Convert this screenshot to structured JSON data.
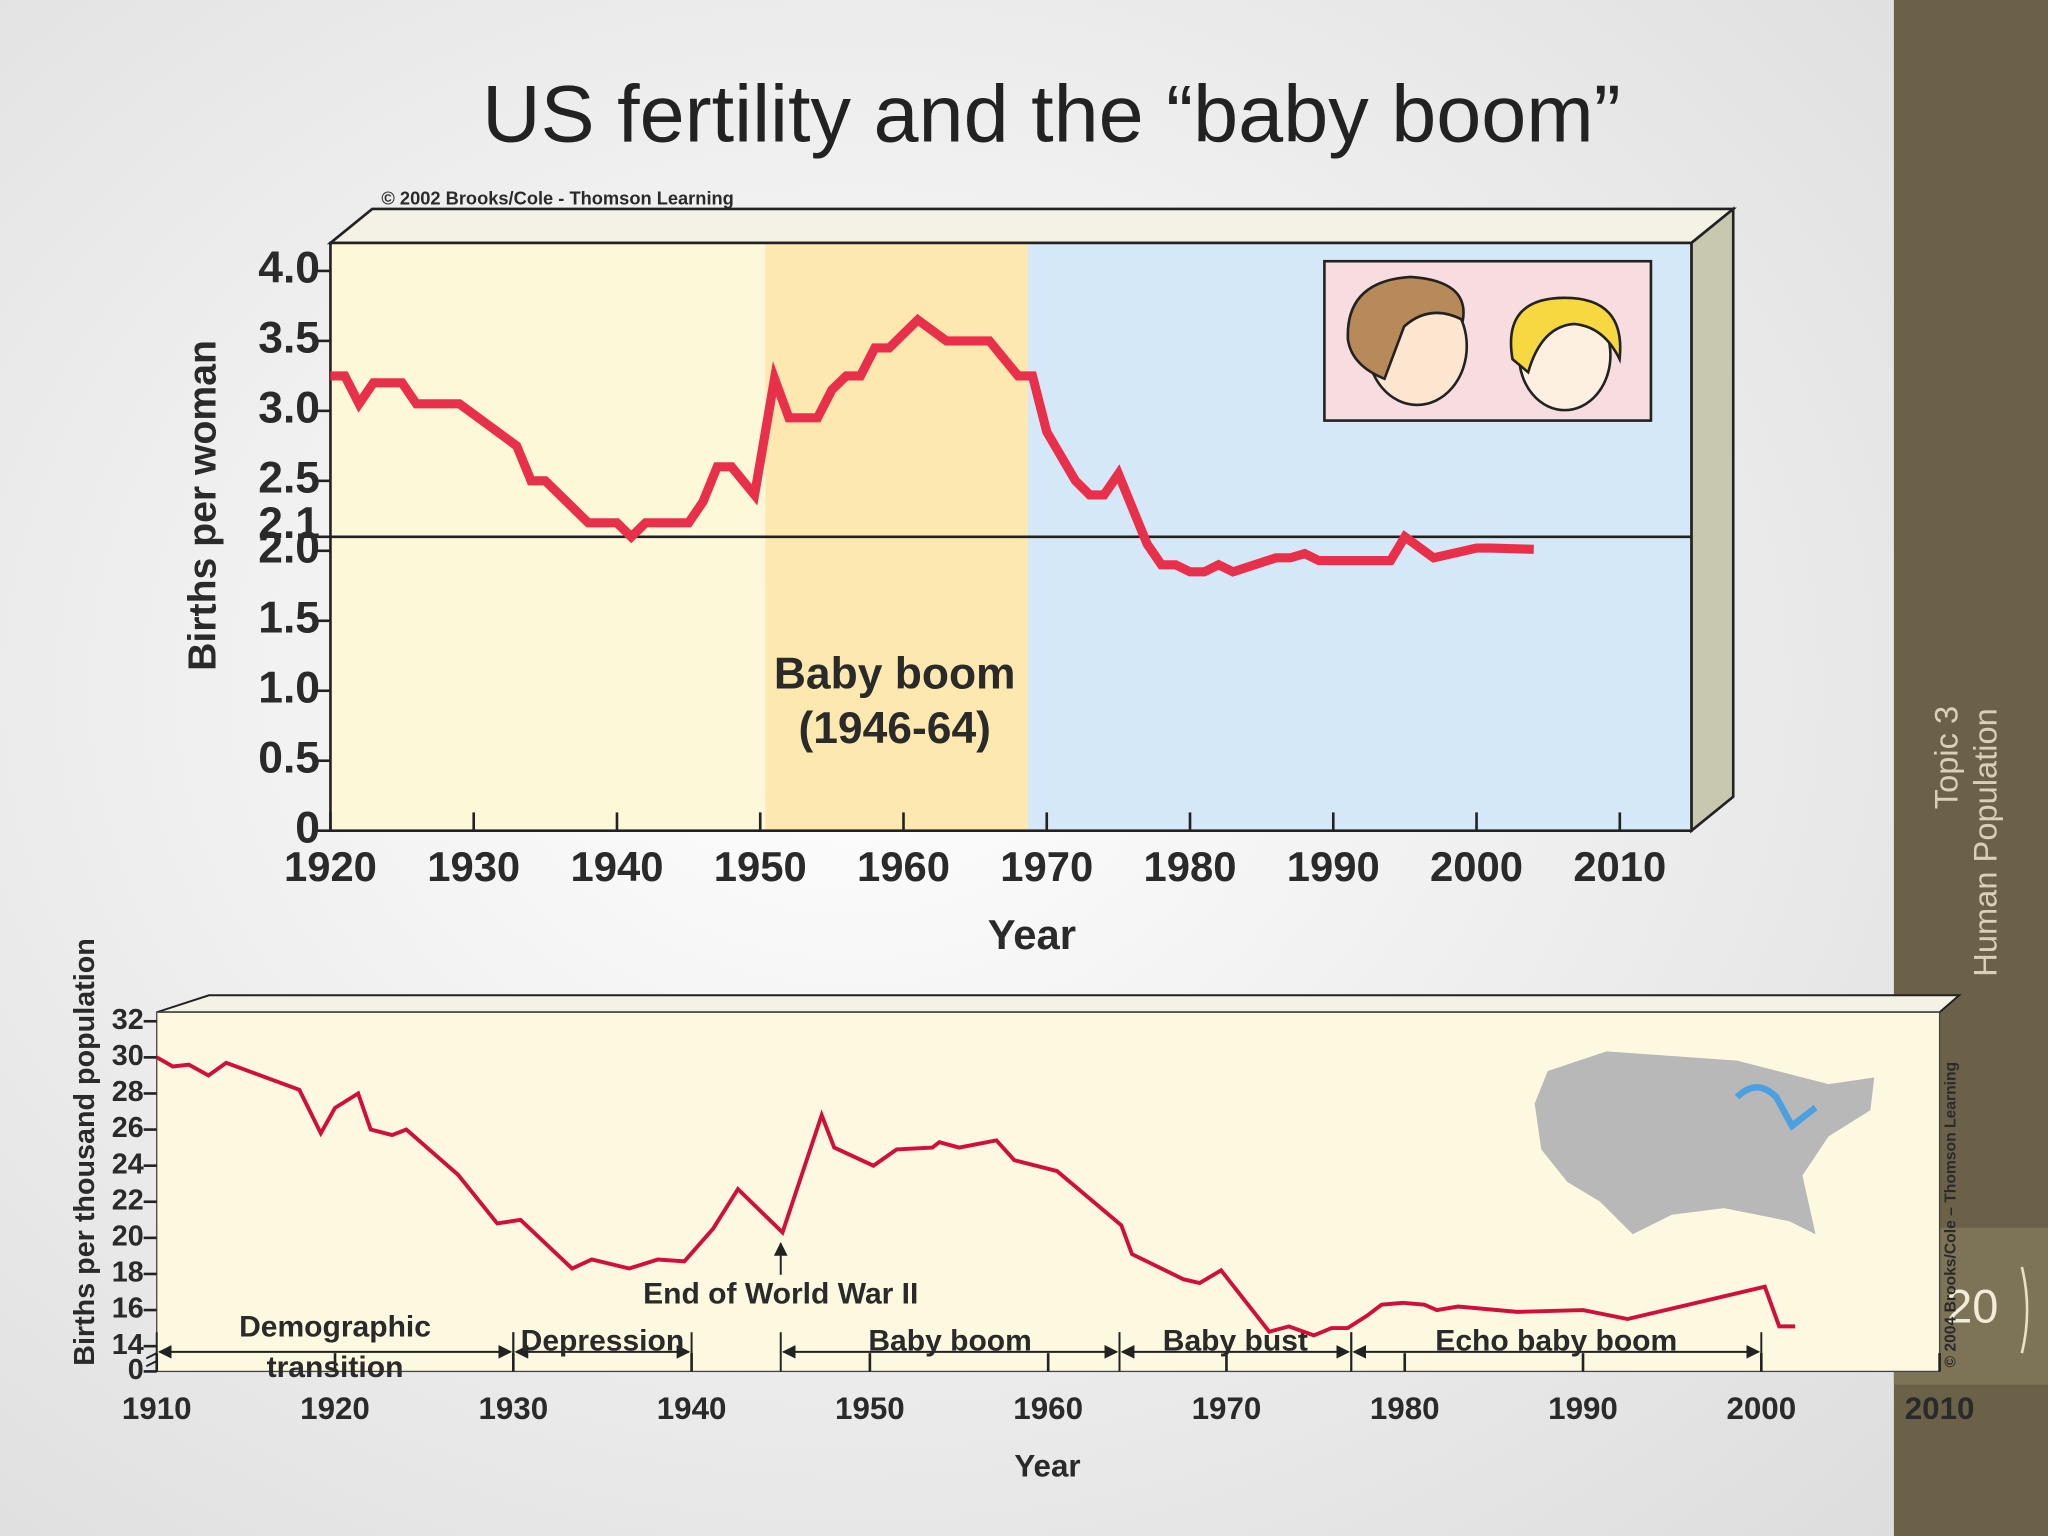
{
  "title": "US fertility and the “baby boom”",
  "sidebar": [
    "Topic 3",
    "Human Population"
  ],
  "page_number": "20",
  "chart_data": [
    {
      "type": "line",
      "credit": "© 2002 Brooks/Cole - Thomson Learning",
      "ylabel": "Births per woman",
      "xlabel": "Year",
      "annotation": [
        "Baby boom",
        "(1946-64)"
      ],
      "reference_line": 2.1,
      "color": "#e8304a",
      "x": [
        1920,
        1921,
        1922,
        1923,
        1925,
        1926,
        1929,
        1933,
        1934,
        1935,
        1938,
        1940,
        1941,
        1942,
        1945,
        1946,
        1947,
        1948,
        1949.6,
        1951,
        1952,
        1954,
        1955,
        1956,
        1957,
        1958,
        1959,
        1961,
        1963,
        1966,
        1968,
        1969,
        1970,
        1972,
        1973,
        1974,
        1975,
        1977,
        1978,
        1979,
        1980,
        1981,
        1982,
        1983,
        1986,
        1987,
        1988,
        1989,
        1994,
        1995,
        1997,
        2000,
        2001,
        2004
      ],
      "values": [
        3.25,
        3.25,
        3.05,
        3.2,
        3.2,
        3.05,
        3.05,
        2.75,
        2.5,
        2.5,
        2.2,
        2.2,
        2.1,
        2.2,
        2.2,
        2.35,
        2.6,
        2.6,
        2.4,
        3.23,
        2.95,
        2.95,
        3.15,
        3.25,
        3.25,
        3.45,
        3.45,
        3.65,
        3.5,
        3.5,
        3.25,
        3.25,
        2.85,
        2.5,
        2.4,
        2.4,
        2.55,
        2.05,
        1.9,
        1.9,
        1.85,
        1.85,
        1.9,
        1.85,
        1.95,
        1.95,
        1.98,
        1.93,
        1.93,
        2.1,
        1.95,
        2.02,
        2.02,
        2.01
      ],
      "xlim": [
        1920,
        2015
      ],
      "xticks": [
        1920,
        1930,
        1940,
        1950,
        1960,
        1970,
        1980,
        1990,
        2000,
        2010
      ],
      "ylim": [
        0,
        4.2
      ],
      "yticks": [
        0,
        0.5,
        {
          "value": 1,
          "label": "1.0"
        },
        1.5,
        {
          "value": 2,
          "label": "2.0"
        },
        2.5,
        {
          "value": 3,
          "label": "3.0"
        },
        3.5,
        {
          "value": 4,
          "label": "4.0"
        }
      ]
    },
    {
      "type": "line",
      "credit": "© 2004 Brooks/Cole – Thomson Learning",
      "ylabel": "Births per thousand population",
      "xlabel": "Year",
      "color": "#d0103a",
      "axis_break": true,
      "event": {
        "text": "End of World War II",
        "x": 1945
      },
      "periods": [
        {
          "label": [
            "Demographic",
            "transition"
          ],
          "start": 1910,
          "end": 1930
        },
        {
          "label": [
            "Depression"
          ],
          "start": 1930,
          "end": 1940
        },
        {
          "label": [
            "Baby boom"
          ],
          "start": 1945,
          "end": 1964
        },
        {
          "label": [
            "Baby bust"
          ],
          "start": 1964,
          "end": 1977
        },
        {
          "label": [
            "Echo baby boom"
          ],
          "start": 1977,
          "end": 2000
        }
      ],
      "x": [
        1910,
        1910.9,
        1911.8,
        1912.9,
        1913.9,
        1918,
        1919.2,
        1920,
        1921.3,
        1922,
        1923.2,
        1924,
        1926.9,
        1929.1,
        1930.4,
        1933.3,
        1934.4,
        1936.5,
        1938.1,
        1939.6,
        1941.2,
        1942.6,
        1945.1,
        1947.3,
        1948,
        1950.2,
        1951.5,
        1953.5,
        1953.9,
        1955,
        1957.1,
        1958.1,
        1960.5,
        1964.1,
        1964.7,
        1967.6,
        1968.5,
        1969.7,
        1972.4,
        1973.5,
        1974.9,
        1975.9,
        1976.8,
        1977.9,
        1978.7,
        1979.9,
        1981.1,
        1981.8,
        1983,
        1986.3,
        1990,
        1992.5,
        2000.2,
        2001,
        2001.9
      ],
      "values": [
        30,
        29.5,
        29.6,
        29,
        29.7,
        28.2,
        25.8,
        27.2,
        28,
        26,
        25.7,
        26,
        23.5,
        20.8,
        21,
        18.3,
        18.8,
        18.3,
        18.8,
        18.7,
        20.5,
        22.7,
        20.3,
        26.8,
        25,
        24,
        24.9,
        25,
        25.3,
        25,
        25.4,
        24.3,
        23.7,
        20.7,
        19.1,
        17.7,
        17.5,
        18.2,
        14.8,
        15.1,
        14.6,
        15,
        15,
        15.7,
        16.3,
        16.4,
        16.3,
        16,
        16.2,
        15.9,
        16,
        15.5,
        17.3,
        15.1,
        15.1
      ],
      "xlim": [
        1910,
        2010
      ],
      "xticks": [
        1910,
        1920,
        1930,
        1940,
        1950,
        1960,
        1970,
        1980,
        1990,
        2000,
        2010
      ],
      "ylim": [
        12.6,
        32.5
      ],
      "yticks": [
        0,
        14,
        16,
        18,
        20,
        22,
        24,
        26,
        28,
        30,
        32
      ]
    }
  ]
}
